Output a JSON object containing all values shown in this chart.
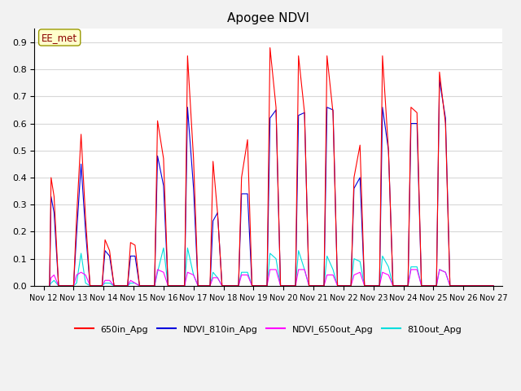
{
  "title": "Apogee NDVI",
  "annotation": "EE_met",
  "ylim": [
    0.0,
    0.95
  ],
  "yticks": [
    0.0,
    0.1,
    0.2,
    0.3,
    0.4,
    0.5,
    0.6,
    0.7,
    0.8,
    0.9
  ],
  "colors": {
    "650in_Apg": "#ff0000",
    "NDVI_810in_Apg": "#0000dd",
    "NDVI_650out_Apg": "#ff00ff",
    "810out_Apg": "#00dddd"
  },
  "fig_bg": "#f2f2f2",
  "ax_bg": "#ffffff",
  "grid_color": "#d8d8d8",
  "legend": [
    "650in_Apg",
    "NDVI_810in_Apg",
    "NDVI_650out_Apg",
    "810out_Apg"
  ],
  "xtick_labels": [
    "Nov 12",
    "Nov 13",
    "Nov 14",
    "Nov 15",
    "Nov 16",
    "Nov 17",
    "Nov 18",
    "Nov 19",
    "Nov 20",
    "Nov 21",
    "Nov 22",
    "Nov 23",
    "Nov 24",
    "Nov 25",
    "Nov 26",
    "Nov 27"
  ],
  "peaks": [
    {
      "day": 12.2,
      "r": 0.0,
      "b": 0.0,
      "m": 0.0,
      "c": 0.0
    },
    {
      "day": 12.25,
      "r": 0.4,
      "b": 0.33,
      "m": 0.03,
      "c": 0.01
    },
    {
      "day": 12.35,
      "r": 0.33,
      "b": 0.27,
      "m": 0.04,
      "c": 0.02
    },
    {
      "day": 12.5,
      "r": 0.0,
      "b": 0.0,
      "m": 0.0,
      "c": 0.0
    },
    {
      "day": 13.0,
      "r": 0.0,
      "b": 0.0,
      "m": 0.0,
      "c": 0.0
    },
    {
      "day": 13.1,
      "r": 0.25,
      "b": 0.19,
      "m": 0.04,
      "c": 0.01
    },
    {
      "day": 13.25,
      "r": 0.56,
      "b": 0.45,
      "m": 0.05,
      "c": 0.12
    },
    {
      "day": 13.4,
      "r": 0.25,
      "b": 0.2,
      "m": 0.04,
      "c": 0.01
    },
    {
      "day": 13.55,
      "r": 0.0,
      "b": 0.0,
      "m": 0.0,
      "c": 0.0
    },
    {
      "day": 13.95,
      "r": 0.0,
      "b": 0.0,
      "m": 0.0,
      "c": 0.0
    },
    {
      "day": 14.05,
      "r": 0.17,
      "b": 0.13,
      "m": 0.02,
      "c": 0.01
    },
    {
      "day": 14.2,
      "r": 0.13,
      "b": 0.11,
      "m": 0.02,
      "c": 0.01
    },
    {
      "day": 14.35,
      "r": 0.0,
      "b": 0.0,
      "m": 0.0,
      "c": 0.0
    },
    {
      "day": 14.8,
      "r": 0.0,
      "b": 0.0,
      "m": 0.0,
      "c": 0.0
    },
    {
      "day": 14.9,
      "r": 0.16,
      "b": 0.11,
      "m": 0.02,
      "c": 0.01
    },
    {
      "day": 15.05,
      "r": 0.15,
      "b": 0.11,
      "m": 0.01,
      "c": 0.01
    },
    {
      "day": 15.2,
      "r": 0.0,
      "b": 0.0,
      "m": 0.0,
      "c": 0.0
    },
    {
      "day": 15.7,
      "r": 0.0,
      "b": 0.0,
      "m": 0.0,
      "c": 0.0
    },
    {
      "day": 15.8,
      "r": 0.61,
      "b": 0.48,
      "m": 0.06,
      "c": 0.05
    },
    {
      "day": 16.0,
      "r": 0.47,
      "b": 0.37,
      "m": 0.05,
      "c": 0.14
    },
    {
      "day": 16.15,
      "r": 0.0,
      "b": 0.0,
      "m": 0.0,
      "c": 0.0
    },
    {
      "day": 16.7,
      "r": 0.0,
      "b": 0.0,
      "m": 0.0,
      "c": 0.0
    },
    {
      "day": 16.8,
      "r": 0.85,
      "b": 0.66,
      "m": 0.05,
      "c": 0.14
    },
    {
      "day": 17.0,
      "r": 0.47,
      "b": 0.36,
      "m": 0.04,
      "c": 0.04
    },
    {
      "day": 17.15,
      "r": 0.0,
      "b": 0.0,
      "m": 0.0,
      "c": 0.0
    },
    {
      "day": 17.55,
      "r": 0.0,
      "b": 0.0,
      "m": 0.0,
      "c": 0.0
    },
    {
      "day": 17.65,
      "r": 0.46,
      "b": 0.24,
      "m": 0.03,
      "c": 0.05
    },
    {
      "day": 17.8,
      "r": 0.27,
      "b": 0.27,
      "m": 0.03,
      "c": 0.03
    },
    {
      "day": 17.95,
      "r": 0.0,
      "b": 0.0,
      "m": 0.0,
      "c": 0.0
    },
    {
      "day": 18.5,
      "r": 0.0,
      "b": 0.0,
      "m": 0.0,
      "c": 0.0
    },
    {
      "day": 18.6,
      "r": 0.4,
      "b": 0.34,
      "m": 0.04,
      "c": 0.05
    },
    {
      "day": 18.8,
      "r": 0.54,
      "b": 0.34,
      "m": 0.04,
      "c": 0.05
    },
    {
      "day": 18.95,
      "r": 0.0,
      "b": 0.0,
      "m": 0.0,
      "c": 0.0
    },
    {
      "day": 19.45,
      "r": 0.0,
      "b": 0.0,
      "m": 0.0,
      "c": 0.0
    },
    {
      "day": 19.55,
      "r": 0.88,
      "b": 0.62,
      "m": 0.06,
      "c": 0.12
    },
    {
      "day": 19.75,
      "r": 0.66,
      "b": 0.65,
      "m": 0.06,
      "c": 0.1
    },
    {
      "day": 19.9,
      "r": 0.0,
      "b": 0.0,
      "m": 0.0,
      "c": 0.0
    },
    {
      "day": 20.4,
      "r": 0.0,
      "b": 0.0,
      "m": 0.0,
      "c": 0.0
    },
    {
      "day": 20.5,
      "r": 0.85,
      "b": 0.63,
      "m": 0.06,
      "c": 0.13
    },
    {
      "day": 20.7,
      "r": 0.64,
      "b": 0.64,
      "m": 0.06,
      "c": 0.06
    },
    {
      "day": 20.85,
      "r": 0.0,
      "b": 0.0,
      "m": 0.0,
      "c": 0.0
    },
    {
      "day": 21.35,
      "r": 0.0,
      "b": 0.0,
      "m": 0.0,
      "c": 0.0
    },
    {
      "day": 21.45,
      "r": 0.85,
      "b": 0.66,
      "m": 0.04,
      "c": 0.11
    },
    {
      "day": 21.65,
      "r": 0.64,
      "b": 0.65,
      "m": 0.04,
      "c": 0.06
    },
    {
      "day": 21.8,
      "r": 0.0,
      "b": 0.0,
      "m": 0.0,
      "c": 0.0
    },
    {
      "day": 22.25,
      "r": 0.0,
      "b": 0.0,
      "m": 0.0,
      "c": 0.0
    },
    {
      "day": 22.35,
      "r": 0.4,
      "b": 0.36,
      "m": 0.04,
      "c": 0.1
    },
    {
      "day": 22.55,
      "r": 0.52,
      "b": 0.4,
      "m": 0.05,
      "c": 0.09
    },
    {
      "day": 22.7,
      "r": 0.0,
      "b": 0.0,
      "m": 0.0,
      "c": 0.0
    },
    {
      "day": 23.2,
      "r": 0.0,
      "b": 0.0,
      "m": 0.0,
      "c": 0.0
    },
    {
      "day": 23.3,
      "r": 0.85,
      "b": 0.66,
      "m": 0.05,
      "c": 0.11
    },
    {
      "day": 23.5,
      "r": 0.5,
      "b": 0.5,
      "m": 0.04,
      "c": 0.07
    },
    {
      "day": 23.65,
      "r": 0.0,
      "b": 0.0,
      "m": 0.0,
      "c": 0.0
    },
    {
      "day": 24.15,
      "r": 0.0,
      "b": 0.0,
      "m": 0.0,
      "c": 0.0
    },
    {
      "day": 24.25,
      "r": 0.66,
      "b": 0.6,
      "m": 0.06,
      "c": 0.07
    },
    {
      "day": 24.45,
      "r": 0.64,
      "b": 0.6,
      "m": 0.06,
      "c": 0.07
    },
    {
      "day": 24.6,
      "r": 0.0,
      "b": 0.0,
      "m": 0.0,
      "c": 0.0
    },
    {
      "day": 25.1,
      "r": 0.0,
      "b": 0.0,
      "m": 0.0,
      "c": 0.0
    },
    {
      "day": 25.2,
      "r": 0.79,
      "b": 0.76,
      "m": 0.06,
      "c": 0.06
    },
    {
      "day": 25.4,
      "r": 0.6,
      "b": 0.62,
      "m": 0.05,
      "c": 0.05
    },
    {
      "day": 25.55,
      "r": 0.0,
      "b": 0.0,
      "m": 0.0,
      "c": 0.0
    },
    {
      "day": 27.0,
      "r": 0.0,
      "b": 0.0,
      "m": 0.0,
      "c": 0.0
    }
  ]
}
